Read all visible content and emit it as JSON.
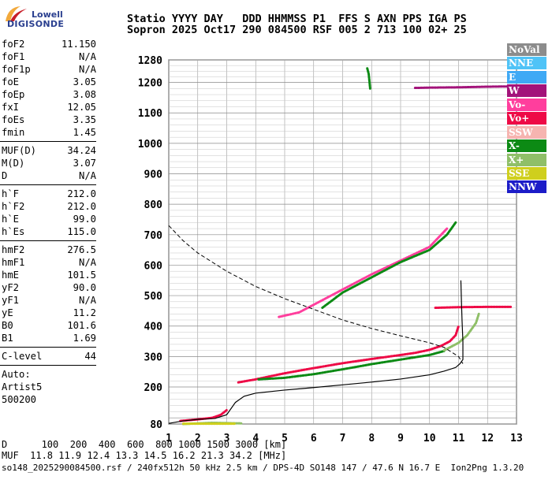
{
  "logo": {
    "top": "Lowell",
    "bottom": "DIGISONDE"
  },
  "header": {
    "line1": "Statio YYYY DAY   DDD HHMMSS P1  FFS S AXN PPS IGA PS",
    "line2": "Sopron 2025 Oct17 290 084500 RSF 005 2 713 100 02+ 25"
  },
  "params_1": [
    {
      "name": "foF2",
      "value": "11.150"
    },
    {
      "name": "foF1",
      "value": "N/A"
    },
    {
      "name": "foF1p",
      "value": "N/A"
    },
    {
      "name": "foE",
      "value": "3.05"
    },
    {
      "name": "foEp",
      "value": "3.08"
    },
    {
      "name": "fxI",
      "value": "12.05"
    },
    {
      "name": "foEs",
      "value": "3.35"
    },
    {
      "name": "fmin",
      "value": "1.45"
    }
  ],
  "params_2": [
    {
      "name": "MUF(D)",
      "value": "34.24"
    },
    {
      "name": "M(D)",
      "value": "3.07"
    },
    {
      "name": "D",
      "value": "N/A"
    }
  ],
  "params_3": [
    {
      "name": "h`F",
      "value": "212.0"
    },
    {
      "name": "h`F2",
      "value": "212.0"
    },
    {
      "name": "h`E",
      "value": "99.0"
    },
    {
      "name": "h`Es",
      "value": "115.0"
    }
  ],
  "params_4": [
    {
      "name": "hmF2",
      "value": "276.5"
    },
    {
      "name": "hmF1",
      "value": "N/A"
    },
    {
      "name": "hmE",
      "value": "101.5"
    },
    {
      "name": "yF2",
      "value": "90.0"
    },
    {
      "name": "yF1",
      "value": "N/A"
    },
    {
      "name": "yE",
      "value": "11.2"
    },
    {
      "name": "B0",
      "value": "101.6"
    },
    {
      "name": "B1",
      "value": "1.69"
    }
  ],
  "params_5": [
    {
      "name": "C-level",
      "value": "44"
    }
  ],
  "auto": {
    "l1": "Auto:",
    "l2": "Artist5",
    "l3": "500200"
  },
  "legend": [
    {
      "label": "NoVal",
      "color": "#8c8c8c"
    },
    {
      "label": "NNE",
      "color": "#4fc3f7"
    },
    {
      "label": "E",
      "color": "#3fa9f5"
    },
    {
      "label": "W",
      "color": "#a3137a"
    },
    {
      "label": "Vo-",
      "color": "#ff3e9d"
    },
    {
      "label": "Vo+",
      "color": "#ee0a46"
    },
    {
      "label": "SSW",
      "color": "#f6b4b0"
    },
    {
      "label": "X-",
      "color": "#0c8a14"
    },
    {
      "label": "X+",
      "color": "#8fbf68"
    },
    {
      "label": "SSE",
      "color": "#cfcf1d"
    },
    {
      "label": "NNW",
      "color": "#1c1cc8"
    }
  ],
  "footer": {
    "d_line": "D      100  200  400  600  800 1000 1500 3000 [km]",
    "muf_line": "MUF  11.8 11.9 12.4 13.3 14.5 16.2 21.3 34.2 [MHz]",
    "file_line": "so148_2025290084500.rsf / 240fx512h 50 kHz 2.5 km / DPS-4D SO148 147 / 47.6 N 16.7 E  Ion2Png 1.3.20"
  },
  "chart_data": {
    "type": "scatter",
    "xlim": [
      1,
      13
    ],
    "ylim": [
      80,
      1280
    ],
    "xticks": [
      "1",
      "2",
      "3",
      "4",
      "5",
      "6",
      "7",
      "8",
      "9",
      "10",
      "11",
      "12",
      "13"
    ],
    "yticks": [
      "80",
      "200",
      "300",
      "400",
      "500",
      "600",
      "700",
      "800",
      "900",
      "1000",
      "1100",
      "1200",
      "1280"
    ],
    "grid": true,
    "profile_solid": {
      "x": [
        1.0,
        1.5,
        2.0,
        2.6,
        3.0,
        3.3,
        3.6,
        4.0,
        5.0,
        6.0,
        7.0,
        8.0,
        9.0,
        10.0,
        10.5,
        10.9,
        11.05,
        11.15,
        11.15,
        11.12,
        11.1,
        11.08
      ],
      "y": [
        82,
        90,
        95,
        98,
        110,
        150,
        170,
        180,
        190,
        198,
        207,
        216,
        226,
        240,
        252,
        264,
        276.5,
        290,
        350,
        420,
        480,
        550
      ]
    },
    "profile_dashed": {
      "x": [
        1.0,
        1.5,
        2.0,
        3.0,
        4.0,
        5.0,
        6.0,
        7.0,
        8.0,
        9.0,
        10.0,
        10.5,
        11.0,
        11.15
      ],
      "y": [
        730,
        680,
        640,
        580,
        530,
        490,
        455,
        420,
        392,
        368,
        345,
        330,
        300,
        276.5
      ]
    },
    "traces": [
      {
        "series": "Vo+",
        "x": [
          1.4,
          2.0,
          2.5,
          2.8,
          3.0
        ],
        "y": [
          90,
          95,
          100,
          110,
          125
        ]
      },
      {
        "series": "Vo+",
        "x": [
          3.4,
          4.0,
          5.0,
          6.0,
          7.0,
          8.0,
          9.0,
          9.5,
          10.0,
          10.4,
          10.7,
          10.9,
          11.0
        ],
        "y": [
          215,
          225,
          245,
          262,
          278,
          292,
          305,
          312,
          322,
          335,
          350,
          370,
          400
        ]
      },
      {
        "series": "X-",
        "x": [
          4.1,
          5.0,
          6.0,
          7.0,
          8.0,
          9.0,
          10.0,
          10.5
        ],
        "y": [
          225,
          230,
          242,
          258,
          275,
          290,
          305,
          318
        ]
      },
      {
        "series": "X+",
        "x": [
          10.5,
          11.0,
          11.3,
          11.6,
          11.7
        ],
        "y": [
          320,
          345,
          370,
          410,
          440
        ]
      },
      {
        "series": "Vo-",
        "x": [
          4.8,
          5.5,
          6.0,
          7.0,
          8.0,
          9.0,
          10.0,
          10.6
        ],
        "y": [
          430,
          445,
          470,
          520,
          570,
          615,
          660,
          720
        ]
      },
      {
        "series": "X-",
        "x": [
          6.3,
          7.0,
          8.0,
          9.0,
          10.0,
          10.6,
          10.9
        ],
        "y": [
          460,
          510,
          560,
          610,
          650,
          700,
          740
        ]
      },
      {
        "series": "W",
        "x": [
          9.5,
          10.0,
          11.0,
          12.0,
          12.8
        ],
        "y": [
          1182,
          1183,
          1184,
          1186,
          1187
        ]
      },
      {
        "series": "Vo+",
        "x": [
          10.2,
          11.0,
          12.0,
          12.8
        ],
        "y": [
          460,
          462,
          463,
          463
        ]
      },
      {
        "series": "X+",
        "x": [
          1.5,
          2.0,
          2.5,
          3.0,
          3.5
        ],
        "y": [
          80,
          82,
          84,
          83,
          82
        ]
      },
      {
        "series": "SSE",
        "x": [
          1.5,
          2.2,
          2.8,
          3.3
        ],
        "y": [
          81,
          81,
          81,
          81
        ]
      },
      {
        "series": "X-",
        "x": [
          7.85,
          7.9,
          7.95
        ],
        "y": [
          1250,
          1230,
          1180
        ]
      }
    ]
  }
}
